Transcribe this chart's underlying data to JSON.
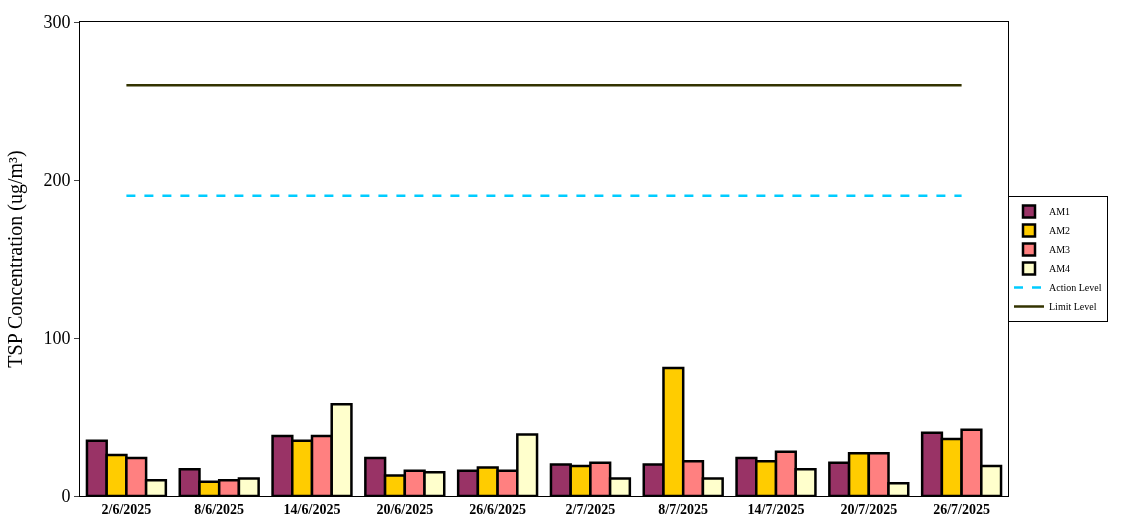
{
  "chart_data": {
    "type": "bar",
    "ylabel": "TSP Concentration (ug/m³)",
    "categories": [
      "2/6/2025",
      "8/6/2025",
      "14/6/2025",
      "20/6/2025",
      "26/6/2025",
      "2/7/2025",
      "8/7/2025",
      "14/7/2025",
      "20/7/2025",
      "26/7/2025"
    ],
    "series": [
      {
        "name": "AM1",
        "color": "#993366",
        "values": [
          35,
          17,
          38,
          24,
          16,
          20,
          20,
          24,
          21,
          40
        ]
      },
      {
        "name": "AM2",
        "color": "#ffcc00",
        "values": [
          26,
          9,
          35,
          13,
          18,
          19,
          81,
          22,
          27,
          36
        ]
      },
      {
        "name": "AM3",
        "color": "#ff8080",
        "values": [
          24,
          10,
          38,
          16,
          16,
          21,
          22,
          28,
          27,
          42
        ]
      },
      {
        "name": "AM4",
        "color": "#ffffcc",
        "values": [
          10,
          11,
          58,
          15,
          39,
          11,
          11,
          17,
          8,
          19
        ]
      }
    ],
    "ref_lines": [
      {
        "axis": "y",
        "value": 190,
        "label": "Action Level",
        "color": "#00ccff",
        "line_style": "dashed"
      },
      {
        "axis": "y",
        "value": 260,
        "label": "Limit Level",
        "color": "#333300",
        "line_style": "solid"
      }
    ],
    "ylim": [
      0,
      300
    ],
    "yticks": [
      0,
      100,
      200,
      300
    ],
    "legend": "right"
  }
}
